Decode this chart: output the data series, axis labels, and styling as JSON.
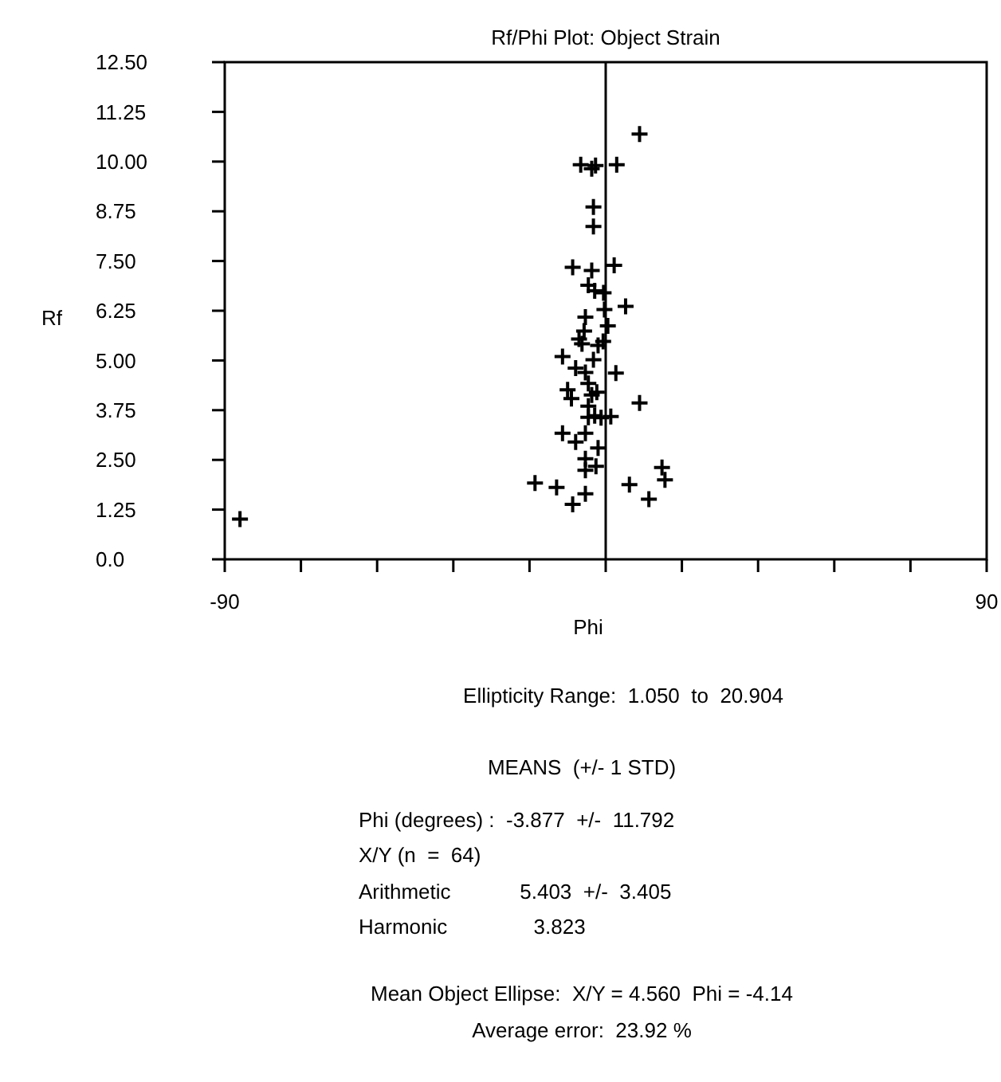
{
  "chart_data": {
    "type": "scatter",
    "title": "Rf/Phi Plot: Object Strain",
    "xlabel": "Phi",
    "ylabel": "Rf",
    "marker": "cross",
    "grid": false,
    "xlim": [
      -90,
      90
    ],
    "xticks": [
      -90,
      {
        "value": -72,
        "label": null
      },
      {
        "value": -54,
        "label": null
      },
      {
        "value": -36,
        "label": null
      },
      {
        "value": -18,
        "label": null
      },
      {
        "value": 0,
        "label": null
      },
      {
        "value": 18,
        "label": null
      },
      {
        "value": 36,
        "label": null
      },
      {
        "value": 54,
        "label": null
      },
      {
        "value": 72,
        "label": null
      },
      90
    ],
    "ylim": [
      0,
      12.5
    ],
    "yticks": [
      {
        "value": 0,
        "label": "0.0"
      },
      1.25,
      {
        "value": 2.5,
        "label": "2.50"
      },
      3.75,
      {
        "value": 5,
        "label": "5.00"
      },
      6.25,
      {
        "value": 7.5,
        "label": "7.50"
      },
      8.75,
      {
        "value": 10,
        "label": "10.00"
      },
      11.25,
      {
        "value": 12.5,
        "label": "12.50"
      }
    ],
    "ref_lines": [
      {
        "axis": "x",
        "value": 0,
        "color": "#000000"
      }
    ],
    "series": [
      {
        "color": "#000000",
        "x": [
          8.0,
          -5.9,
          -3.3,
          -2.4,
          2.6,
          -2.9,
          -2.9,
          -7.8,
          -3.3,
          2.0,
          -4.1,
          -2.6,
          -0.5,
          4.7,
          -0.3,
          -4.8,
          0.5,
          -5.1,
          -6.3,
          -5.6,
          -1.8,
          -0.6,
          -10.2,
          -7.1,
          -4.8,
          2.4,
          -4.1,
          -9.0,
          -8.1,
          -3.3,
          -2.1,
          8.0,
          -4.1,
          -2.6,
          1.2,
          -1.1,
          -10.2,
          -4.8,
          -7.1,
          -1.8,
          -4.8,
          -2.3,
          -4.8,
          13.3,
          14.0,
          -16.7,
          -11.6,
          5.6,
          10.2,
          -4.8,
          -7.8,
          -86.4,
          -2.9,
          -4.1
        ],
        "values": [
          10.69,
          9.92,
          9.82,
          9.9,
          9.92,
          8.86,
          8.37,
          7.34,
          7.26,
          7.39,
          6.89,
          6.75,
          6.7,
          6.36,
          6.28,
          6.09,
          5.87,
          5.74,
          5.54,
          5.42,
          5.38,
          5.48,
          5.1,
          4.81,
          4.7,
          4.68,
          4.42,
          4.26,
          4.04,
          4.13,
          4.2,
          3.93,
          3.57,
          3.61,
          3.59,
          3.56,
          3.17,
          3.17,
          2.95,
          2.8,
          2.53,
          2.34,
          2.24,
          2.31,
          2.0,
          1.92,
          1.81,
          1.88,
          1.51,
          1.65,
          1.38,
          1.01,
          5.02,
          3.85
        ]
      }
    ],
    "annotations": [
      "Ellipticity Range:  1.050  to  20.904",
      "MEANS  (+/- 1 STD)",
      "Phi (degrees) :  -3.877  +/-  11.792",
      "X/Y (n  =  64)",
      "Arithmetic            5.403  +/-  3.405",
      "Harmonic               3.823",
      "Mean Object Ellipse:  X/Y = 4.560  Phi = -4.14",
      "Average error:  23.92 %"
    ]
  }
}
